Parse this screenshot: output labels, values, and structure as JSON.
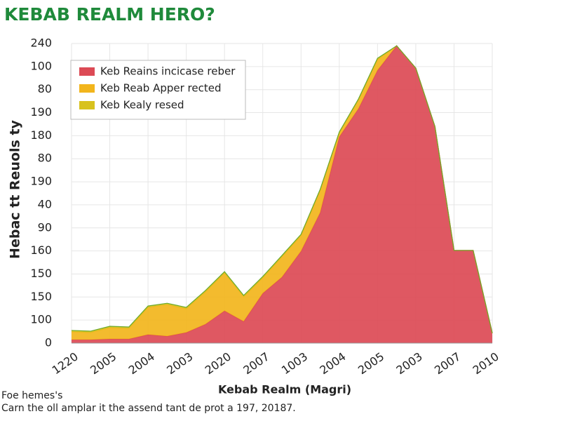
{
  "chart_data": {
    "type": "stacked-area",
    "title": "KEBAB REALM HERO?",
    "ylabel": "Hebac tt Reuols ty",
    "xlabel": "Kebab Realm (Magri)",
    "footer": [
      "Foe hemes's",
      "Carn the oll amplar it the assend tant de prot a 197, 20187."
    ],
    "legend_position": "upper left",
    "grid": true,
    "xlim": [
      0,
      11
    ],
    "xticks": [
      {
        "value": 0,
        "label": "1220"
      },
      {
        "value": 1,
        "label": "2005"
      },
      {
        "value": 2,
        "label": "2004"
      },
      {
        "value": 3,
        "label": "2003"
      },
      {
        "value": 4,
        "label": "2020"
      },
      {
        "value": 5,
        "label": "2007"
      },
      {
        "value": 6,
        "label": "1003"
      },
      {
        "value": 7,
        "label": "2004"
      },
      {
        "value": 8,
        "label": "2005"
      },
      {
        "value": 9,
        "label": "2003"
      },
      {
        "value": 10,
        "label": "2007"
      },
      {
        "value": 11,
        "label": "2010"
      }
    ],
    "ylim": [
      0,
      13
    ],
    "yticks": [
      {
        "value": 0,
        "label": "0"
      },
      {
        "value": 1,
        "label": "100"
      },
      {
        "value": 2,
        "label": "150"
      },
      {
        "value": 3,
        "label": "150"
      },
      {
        "value": 4,
        "label": "160"
      },
      {
        "value": 5,
        "label": "90"
      },
      {
        "value": 6,
        "label": "40"
      },
      {
        "value": 7,
        "label": "190"
      },
      {
        "value": 8,
        "label": "80"
      },
      {
        "value": 9,
        "label": "180"
      },
      {
        "value": 10,
        "label": "190"
      },
      {
        "value": 11,
        "label": "80"
      },
      {
        "value": 12,
        "label": "100"
      },
      {
        "value": 13,
        "label": "240"
      }
    ],
    "x": [
      0,
      0.5,
      1,
      1.5,
      2,
      2.5,
      3,
      3.5,
      4,
      4.5,
      5,
      5.5,
      6,
      6.5,
      7,
      7.5,
      8,
      8.5,
      9,
      9.5,
      10,
      10.5,
      11
    ],
    "series": [
      {
        "name": "Keb Reains incicase reber",
        "color": "#dc4a55",
        "values": [
          0.15,
          0.15,
          0.18,
          0.18,
          0.37,
          0.3,
          0.46,
          0.82,
          1.4,
          0.94,
          2.16,
          2.86,
          3.99,
          5.66,
          8.95,
          10.17,
          11.84,
          12.9,
          11.93,
          9.4,
          4.02,
          4.02,
          0.43
        ]
      },
      {
        "name": "Keb Reab Apper rected",
        "color": "#f2b51c",
        "values": [
          0.34,
          0.31,
          0.49,
          0.46,
          1.18,
          1.37,
          1.03,
          1.4,
          1.64,
          1.07,
          0.67,
          0.88,
          0.67,
          0.95,
          0.15,
          0.36,
          0.46,
          0,
          0,
          0,
          0,
          0,
          0
        ]
      },
      {
        "name": "Keb Kealy resed",
        "color": "#d8c21e",
        "values": [
          0.06,
          0.06,
          0.06,
          0.06,
          0.06,
          0.06,
          0.06,
          0.06,
          0.06,
          0.06,
          0.06,
          0.06,
          0.06,
          0.06,
          0.06,
          0.06,
          0.06,
          0,
          0,
          0,
          0,
          0,
          0
        ]
      }
    ]
  }
}
